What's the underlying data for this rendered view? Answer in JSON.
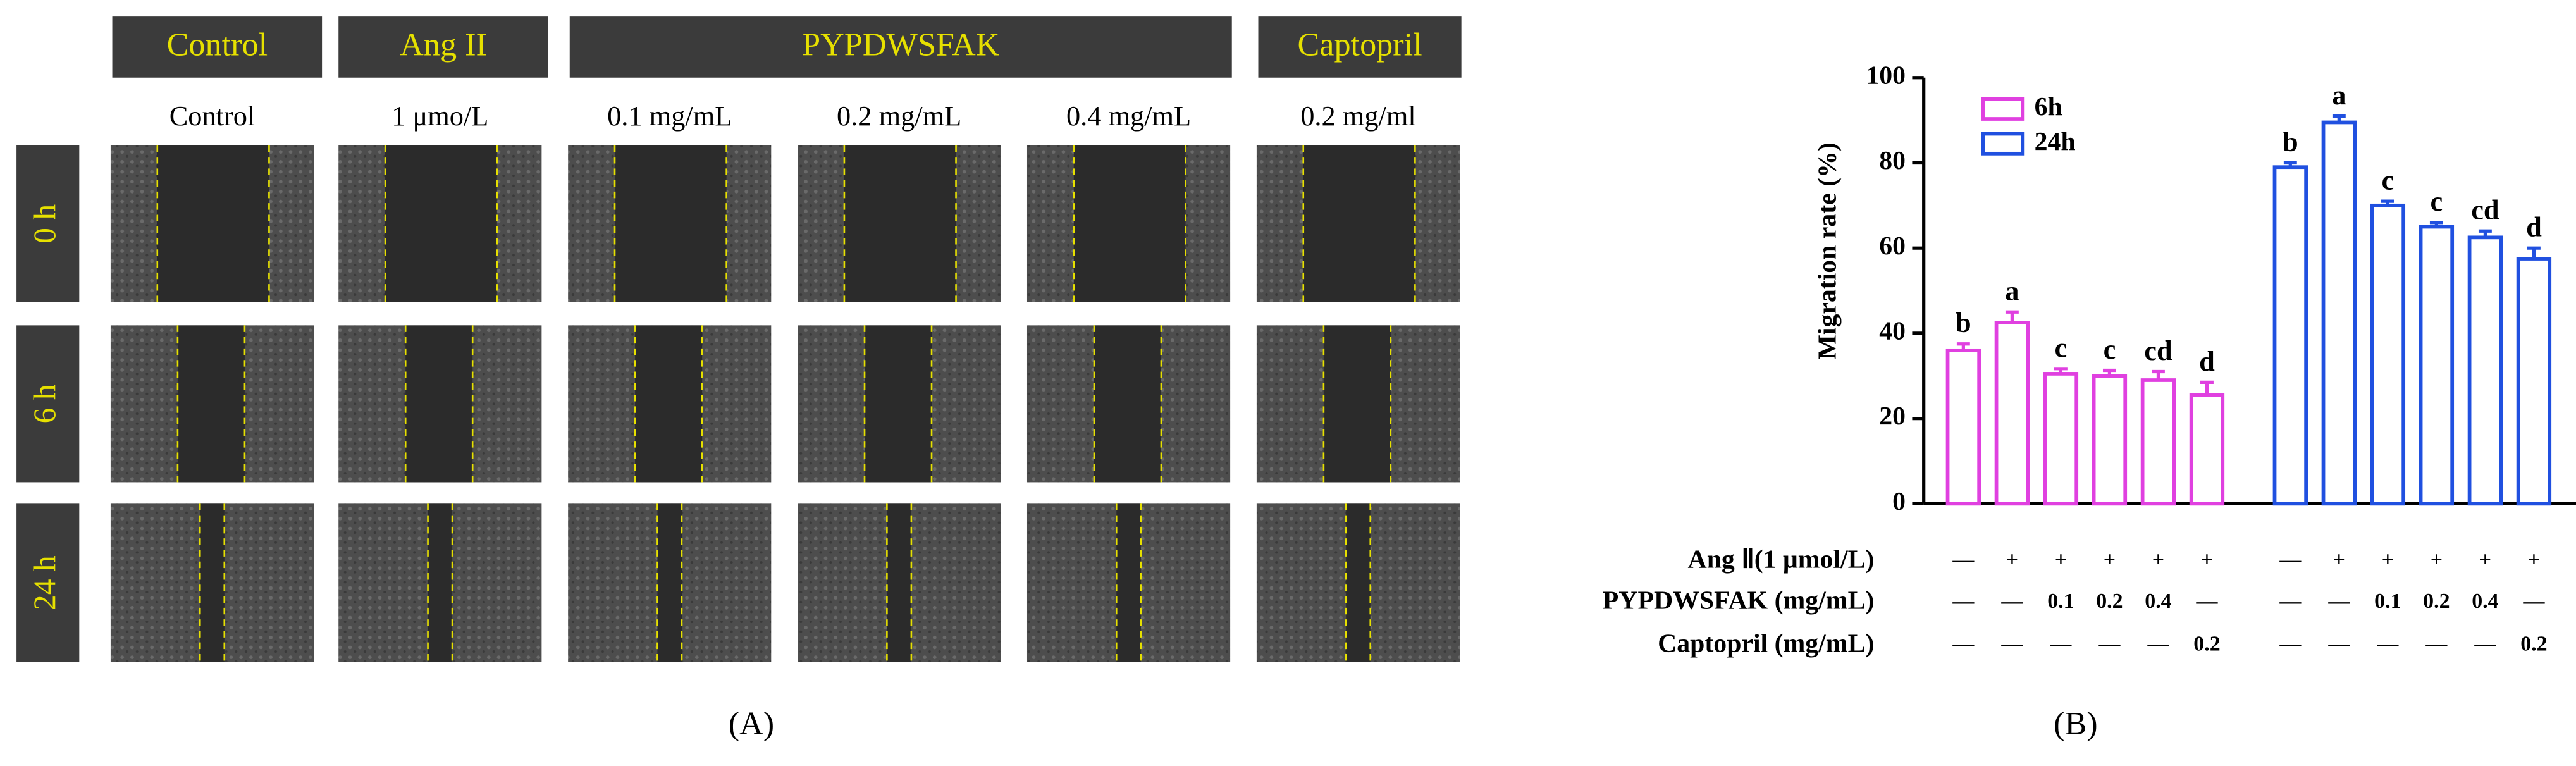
{
  "panel_a": {
    "headers": [
      "Control",
      "Ang II",
      "PYPDWSFAK",
      "Captopril"
    ],
    "subheaders": [
      "Control",
      "1 μmo/L",
      "0.1 mg/mL",
      "0.2 mg/mL",
      "0.4 mg/mL",
      "0.2 mg/ml"
    ],
    "rows": [
      "0 h",
      "6 h",
      "24 h"
    ],
    "label": "(A)"
  },
  "chart_data": {
    "type": "bar",
    "label": "(B)",
    "y_label": "Migration rate (%)",
    "categories": [
      null,
      null,
      null,
      null,
      null,
      null
    ],
    "series": [
      {
        "name": "6h",
        "color": "#e040e0",
        "values": [
          36,
          42.5,
          30.5,
          30,
          29,
          25.5
        ],
        "errors": [
          1.5,
          2.5,
          1.2,
          1.3,
          2,
          3
        ],
        "letters": [
          "b",
          "a",
          "c",
          "c",
          "cd",
          "d"
        ]
      },
      {
        "name": "24h",
        "color": "#2050e0",
        "values": [
          79,
          89.5,
          70,
          65,
          62.5,
          57.5
        ],
        "errors": [
          1,
          1.5,
          1,
          1,
          1.5,
          2.5
        ],
        "letters": [
          "b",
          "a",
          "c",
          "c",
          "cd",
          "d"
        ]
      }
    ],
    "ylim": [
      0,
      100
    ],
    "yticks": [
      0,
      20,
      40,
      60,
      80,
      100
    ],
    "legend": "upper left",
    "conditions": [
      {
        "label": "Ang Ⅱ(1 μmol/L)",
        "cells": [
          "—",
          "+",
          "+",
          "+",
          "+",
          "+",
          "—",
          "+",
          "+",
          "+",
          "+",
          "+"
        ]
      },
      {
        "label": "PYPDWSFAK (mg/mL)",
        "cells": [
          "—",
          "—",
          "0.1",
          "0.2",
          "0.4",
          "—",
          "—",
          "—",
          "0.1",
          "0.2",
          "0.4",
          "—"
        ]
      },
      {
        "label": "Captopril (mg/mL)",
        "cells": [
          "—",
          "—",
          "—",
          "—",
          "—",
          "0.2",
          "—",
          "—",
          "—",
          "—",
          "—",
          "0.2"
        ]
      }
    ]
  }
}
